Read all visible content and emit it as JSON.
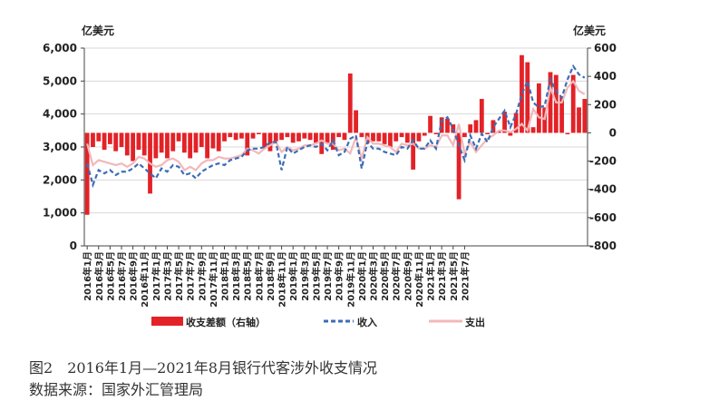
{
  "chart_data": {
    "type": "bar+line",
    "left_unit": "亿美元",
    "right_unit": "亿美元",
    "left_axis": {
      "min": 0,
      "max": 6000,
      "ticks": [
        "0",
        "1,000",
        "2,000",
        "3,000",
        "4,000",
        "5,000",
        "6,000"
      ]
    },
    "right_axis": {
      "min": -800,
      "max": 600,
      "ticks": [
        "-800",
        "-600",
        "-400",
        "-200",
        "0",
        "200",
        "400",
        "600"
      ]
    },
    "x_tick_labels": [
      "2016年1月",
      "2016年3月",
      "2016年5月",
      "2016年7月",
      "2016年9月",
      "2016年11月",
      "2017年1月",
      "2017年3月",
      "2017年5月",
      "2017年7月",
      "2017年9月",
      "2017年11月",
      "2018年1月",
      "2018年3月",
      "2018年5月",
      "2018年7月",
      "2018年9月",
      "2018年11月",
      "2019年1月",
      "2019年3月",
      "2019年5月",
      "2019年7月",
      "2019年9月",
      "2019年11月",
      "2020年1月",
      "2020年3月",
      "2020年5月",
      "2020年7月",
      "2020年9月",
      "2020年11月",
      "2021年1月",
      "2021年3月",
      "2021年5月",
      "2021年7月"
    ],
    "series": [
      {
        "name": "收支差额（右轴）",
        "kind": "bar",
        "axis": "right",
        "color": "#e32227",
        "values": [
          -580,
          -100,
          -60,
          -120,
          -80,
          -130,
          -100,
          -160,
          -200,
          -120,
          -160,
          -430,
          -180,
          -140,
          -180,
          -130,
          -60,
          -140,
          -180,
          -140,
          -100,
          -180,
          -110,
          -130,
          -60,
          -30,
          -50,
          -40,
          -160,
          -40,
          -10,
          -100,
          -130,
          -60,
          -50,
          -30,
          -70,
          -60,
          -40,
          -50,
          -70,
          -150,
          -70,
          -120,
          -30,
          -50,
          420,
          160,
          -30,
          -70,
          -60,
          -60,
          -80,
          -100,
          -60,
          -30,
          -70,
          -260,
          -60,
          -20,
          120,
          -10,
          110,
          100,
          60,
          -470,
          -30,
          60,
          90,
          240,
          -10,
          90,
          10,
          150,
          -20,
          140,
          550,
          500,
          40,
          350,
          180,
          430,
          410,
          260,
          -10,
          410,
          180,
          240
        ],
        "legend_label": "收支差额（右轴）"
      },
      {
        "name": "收入",
        "kind": "line",
        "axis": "left",
        "color": "#3d6db5",
        "dash": true,
        "values": [
          2500,
          1850,
          2300,
          2200,
          2300,
          2150,
          2250,
          2250,
          2350,
          2500,
          2350,
          2200,
          2050,
          2350,
          2250,
          2450,
          2400,
          2150,
          2200,
          2050,
          2250,
          2350,
          2450,
          2500,
          2450,
          2600,
          2650,
          2700,
          2900,
          2950,
          2950,
          3000,
          3150,
          3150,
          2300,
          3000,
          2800,
          2900,
          3000,
          3050,
          3000,
          3100,
          2900,
          3200,
          2750,
          2850,
          3250,
          3350,
          2350,
          3150,
          2950,
          2950,
          2850,
          2800,
          2750,
          3000,
          2950,
          3200,
          2950,
          2950,
          3200,
          2950,
          3800,
          3900,
          3550,
          3050,
          2600,
          3350,
          2950,
          3400,
          3150,
          3600,
          3850,
          4100,
          3600,
          4000,
          4600,
          5000,
          4350,
          4200,
          4250,
          5050,
          4700,
          4500,
          5050,
          5450,
          5200,
          5100
        ],
        "legend_label": "收入"
      },
      {
        "name": "支出",
        "kind": "line",
        "axis": "left",
        "color": "#f2b8bb",
        "dash": false,
        "values": [
          3100,
          2450,
          2600,
          2550,
          2500,
          2450,
          2500,
          2400,
          2500,
          2700,
          2650,
          2500,
          2400,
          2450,
          2600,
          2650,
          2550,
          2300,
          2400,
          2300,
          2500,
          2600,
          2600,
          2700,
          2650,
          2650,
          2700,
          2750,
          2950,
          2900,
          2800,
          2950,
          3050,
          3150,
          2850,
          3000,
          2900,
          2950,
          3050,
          3050,
          3100,
          3200,
          3100,
          3100,
          2900,
          2950,
          2800,
          3300,
          2650,
          3300,
          3100,
          3100,
          3050,
          3000,
          2850,
          3100,
          3050,
          3100,
          2950,
          2950,
          3050,
          3000,
          3350,
          3350,
          3050,
          3700,
          2800,
          3150,
          2850,
          3050,
          3250,
          3350,
          3500,
          3500,
          3450,
          3550,
          3700,
          3500,
          4150,
          3900,
          3850,
          4800,
          4350,
          4350,
          4800,
          5000,
          4700,
          4600
        ],
        "legend_label": "支出"
      }
    ]
  },
  "caption": {
    "figure_no": "图2",
    "title": "2016年1月—2021年8月银行代客涉外收支情况",
    "source": "数据来源：国家外汇管理局"
  }
}
